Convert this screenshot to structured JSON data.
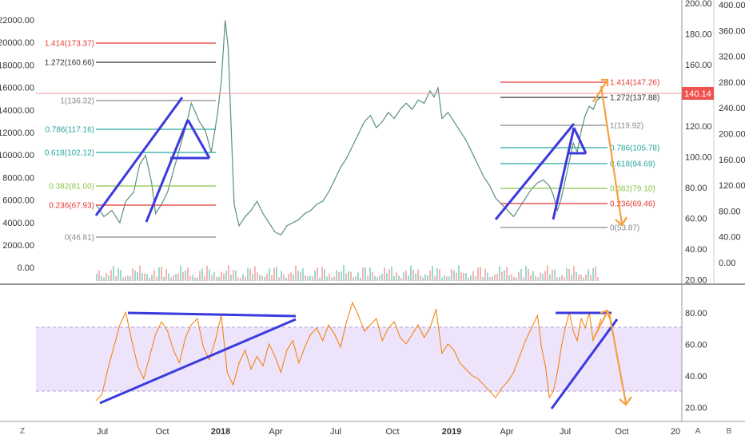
{
  "chart_data": {
    "type": "line",
    "title": "",
    "main_pane": {
      "left_axis_ticks": [
        "22000.00",
        "20000.00",
        "18000.00",
        "16000.00",
        "14000.00",
        "12000.00",
        "10000.00",
        "8000.00",
        "6000.00",
        "4000.00",
        "2000.00",
        "0.00"
      ],
      "right_axis_ticks": [
        "200.00",
        "180.00",
        "160.00",
        "140.00",
        "120.00",
        "100.00",
        "80.00",
        "60.00",
        "40.00",
        "20.00"
      ],
      "far_right_axis_ticks": [
        "400.00",
        "360.00",
        "320.00",
        "280.00",
        "240.00",
        "200.00",
        "160.00",
        "120.00",
        "80.00",
        "40.00",
        "0.00"
      ],
      "last_price": "140.14",
      "fib_left": [
        {
          "label": "1.414(173.37)",
          "color": "#e53935"
        },
        {
          "label": "1.272(160.66)",
          "color": "#333333"
        },
        {
          "label": "1(136.32)",
          "color": "#888888"
        },
        {
          "label": "0.786(117.16)",
          "color": "#26a69a"
        },
        {
          "label": "0.618(102.12)",
          "color": "#26a69a"
        },
        {
          "label": "0.382(81.00)",
          "color": "#8bc34a"
        },
        {
          "label": "0.236(67.93)",
          "color": "#e53935"
        },
        {
          "label": "0(46.81)",
          "color": "#888888"
        }
      ],
      "fib_right": [
        {
          "label": "1.414(147.26)",
          "color": "#e53935"
        },
        {
          "label": "1.272(137.88)",
          "color": "#333333"
        },
        {
          "label": "1(119.92)",
          "color": "#888888"
        },
        {
          "label": "0.786(105.78)",
          "color": "#26a69a"
        },
        {
          "label": "0.618(94.69)",
          "color": "#26a69a"
        },
        {
          "label": "0.382(79.10)",
          "color": "#8bc34a"
        },
        {
          "label": "0.236(69.46)",
          "color": "#e53935"
        },
        {
          "label": "0(53.87)",
          "color": "#888888"
        }
      ],
      "price_series": [
        [
          0,
          70
        ],
        [
          8,
          62
        ],
        [
          16,
          66
        ],
        [
          24,
          58
        ],
        [
          30,
          72
        ],
        [
          38,
          78
        ],
        [
          44,
          96
        ],
        [
          50,
          102
        ],
        [
          56,
          84
        ],
        [
          60,
          64
        ],
        [
          66,
          70
        ],
        [
          72,
          78
        ],
        [
          78,
          92
        ],
        [
          84,
          106
        ],
        [
          90,
          120
        ],
        [
          96,
          136
        ],
        [
          100,
          130
        ],
        [
          104,
          124
        ],
        [
          110,
          118
        ],
        [
          116,
          104
        ],
        [
          122,
          128
        ],
        [
          126,
          150
        ],
        [
          130,
          190
        ],
        [
          133,
          172
        ],
        [
          136,
          120
        ],
        [
          139,
          70
        ],
        [
          144,
          56
        ],
        [
          150,
          62
        ],
        [
          156,
          66
        ],
        [
          162,
          72
        ],
        [
          168,
          64
        ],
        [
          174,
          58
        ],
        [
          180,
          52
        ],
        [
          186,
          50
        ],
        [
          192,
          56
        ],
        [
          198,
          58
        ],
        [
          204,
          60
        ],
        [
          210,
          64
        ],
        [
          216,
          66
        ],
        [
          222,
          70
        ],
        [
          228,
          72
        ],
        [
          234,
          78
        ],
        [
          240,
          86
        ],
        [
          246,
          94
        ],
        [
          252,
          100
        ],
        [
          258,
          108
        ],
        [
          264,
          116
        ],
        [
          270,
          124
        ],
        [
          276,
          128
        ],
        [
          282,
          120
        ],
        [
          288,
          124
        ],
        [
          294,
          130
        ],
        [
          300,
          126
        ],
        [
          306,
          132
        ],
        [
          312,
          136
        ],
        [
          318,
          132
        ],
        [
          324,
          138
        ],
        [
          330,
          136
        ],
        [
          336,
          144
        ],
        [
          340,
          140
        ],
        [
          344,
          146
        ],
        [
          348,
          126
        ],
        [
          354,
          130
        ],
        [
          360,
          124
        ],
        [
          366,
          118
        ],
        [
          372,
          112
        ],
        [
          378,
          104
        ],
        [
          384,
          96
        ],
        [
          390,
          88
        ],
        [
          396,
          82
        ],
        [
          402,
          74
        ],
        [
          408,
          70
        ],
        [
          414,
          66
        ],
        [
          420,
          62
        ],
        [
          426,
          68
        ],
        [
          432,
          74
        ],
        [
          438,
          80
        ],
        [
          444,
          84
        ],
        [
          450,
          86
        ],
        [
          456,
          82
        ],
        [
          460,
          76
        ],
        [
          464,
          66
        ],
        [
          468,
          74
        ],
        [
          472,
          86
        ],
        [
          476,
          98
        ],
        [
          480,
          110
        ],
        [
          484,
          104
        ],
        [
          488,
          118
        ],
        [
          492,
          128
        ],
        [
          496,
          134
        ],
        [
          500,
          132
        ],
        [
          504,
          138
        ],
        [
          508,
          140
        ]
      ]
    },
    "rsi_pane": {
      "axis_ticks": [
        "80.00",
        "60.00",
        "40.00",
        "20.00"
      ],
      "band_upper": 70,
      "band_lower": 30,
      "series": [
        [
          0,
          24
        ],
        [
          6,
          28
        ],
        [
          12,
          44
        ],
        [
          18,
          58
        ],
        [
          24,
          72
        ],
        [
          30,
          80
        ],
        [
          36,
          62
        ],
        [
          42,
          46
        ],
        [
          48,
          38
        ],
        [
          54,
          52
        ],
        [
          60,
          66
        ],
        [
          66,
          74
        ],
        [
          72,
          68
        ],
        [
          78,
          56
        ],
        [
          84,
          48
        ],
        [
          90,
          64
        ],
        [
          96,
          72
        ],
        [
          102,
          76
        ],
        [
          108,
          58
        ],
        [
          114,
          50
        ],
        [
          120,
          62
        ],
        [
          126,
          78
        ],
        [
          132,
          42
        ],
        [
          138,
          34
        ],
        [
          144,
          48
        ],
        [
          150,
          56
        ],
        [
          156,
          44
        ],
        [
          162,
          52
        ],
        [
          168,
          46
        ],
        [
          174,
          60
        ],
        [
          180,
          52
        ],
        [
          186,
          42
        ],
        [
          192,
          56
        ],
        [
          198,
          62
        ],
        [
          204,
          48
        ],
        [
          210,
          58
        ],
        [
          216,
          66
        ],
        [
          222,
          70
        ],
        [
          228,
          62
        ],
        [
          234,
          72
        ],
        [
          240,
          66
        ],
        [
          246,
          58
        ],
        [
          252,
          74
        ],
        [
          258,
          86
        ],
        [
          264,
          78
        ],
        [
          270,
          68
        ],
        [
          276,
          72
        ],
        [
          282,
          76
        ],
        [
          288,
          62
        ],
        [
          294,
          70
        ],
        [
          300,
          74
        ],
        [
          306,
          64
        ],
        [
          312,
          60
        ],
        [
          318,
          66
        ],
        [
          324,
          72
        ],
        [
          330,
          64
        ],
        [
          336,
          70
        ],
        [
          342,
          82
        ],
        [
          348,
          54
        ],
        [
          354,
          60
        ],
        [
          360,
          56
        ],
        [
          366,
          48
        ],
        [
          372,
          44
        ],
        [
          378,
          40
        ],
        [
          384,
          38
        ],
        [
          390,
          34
        ],
        [
          396,
          30
        ],
        [
          402,
          26
        ],
        [
          408,
          32
        ],
        [
          414,
          36
        ],
        [
          420,
          42
        ],
        [
          426,
          52
        ],
        [
          432,
          62
        ],
        [
          438,
          70
        ],
        [
          444,
          78
        ],
        [
          448,
          58
        ],
        [
          452,
          46
        ],
        [
          456,
          26
        ],
        [
          460,
          30
        ],
        [
          464,
          42
        ],
        [
          468,
          58
        ],
        [
          472,
          70
        ],
        [
          476,
          80
        ],
        [
          480,
          68
        ],
        [
          484,
          62
        ],
        [
          488,
          76
        ],
        [
          492,
          70
        ],
        [
          496,
          80
        ],
        [
          500,
          62
        ],
        [
          504,
          68
        ],
        [
          508,
          76
        ]
      ]
    },
    "x_ticks": [
      "Jul",
      "Oct",
      "2018",
      "Apr",
      "Jul",
      "Oct",
      "2019",
      "Apr",
      "Jul",
      "Oct",
      "20"
    ],
    "bottom_corner_labels": [
      "Z",
      "A",
      "B"
    ]
  }
}
